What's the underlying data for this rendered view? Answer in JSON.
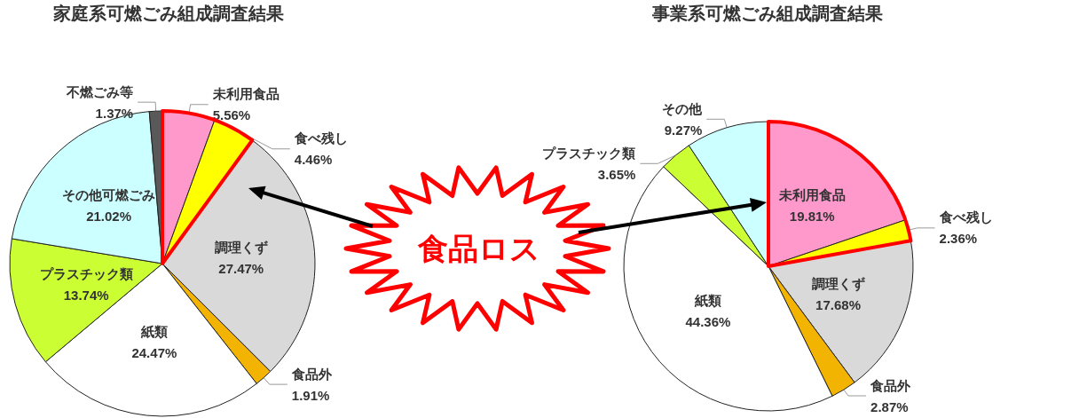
{
  "chart_data": [
    {
      "type": "pie",
      "title": "家庭系可燃ごみ組成調査結果",
      "categories": [
        "未利用食品",
        "食べ残し",
        "調理くず",
        "食品外",
        "紙類",
        "プラスチック類",
        "その他可燃ごみ",
        "不燃ごみ等"
      ],
      "values": [
        5.56,
        4.46,
        27.47,
        1.91,
        24.47,
        13.74,
        21.02,
        1.37
      ],
      "value_labels": [
        "5.56%",
        "4.46%",
        "27.47%",
        "1.91%",
        "24.47%",
        "13.74%",
        "21.02%",
        "1.37%"
      ],
      "colors": [
        "#ff99cc",
        "#ffff00",
        "#d9d9d9",
        "#f2b400",
        "#ffffff",
        "#ccff33",
        "#ccffff",
        "#595959"
      ],
      "annotations": [
        "食品ロス"
      ]
    },
    {
      "type": "pie",
      "title": "事業系可燃ごみ組成調査結果",
      "categories": [
        "未利用食品",
        "食べ残し",
        "調理くず",
        "食品外",
        "紙類",
        "プラスチック類",
        "その他"
      ],
      "values": [
        19.81,
        2.36,
        17.68,
        2.87,
        44.36,
        3.65,
        9.27
      ],
      "value_labels": [
        "19.81%",
        "2.36%",
        "17.68%",
        "2.87%",
        "44.36%",
        "3.65%",
        "9.27%"
      ],
      "colors": [
        "#ff99cc",
        "#ffff00",
        "#d9d9d9",
        "#f2b400",
        "#ffffff",
        "#ccff33",
        "#ccffff"
      ]
    }
  ]
}
